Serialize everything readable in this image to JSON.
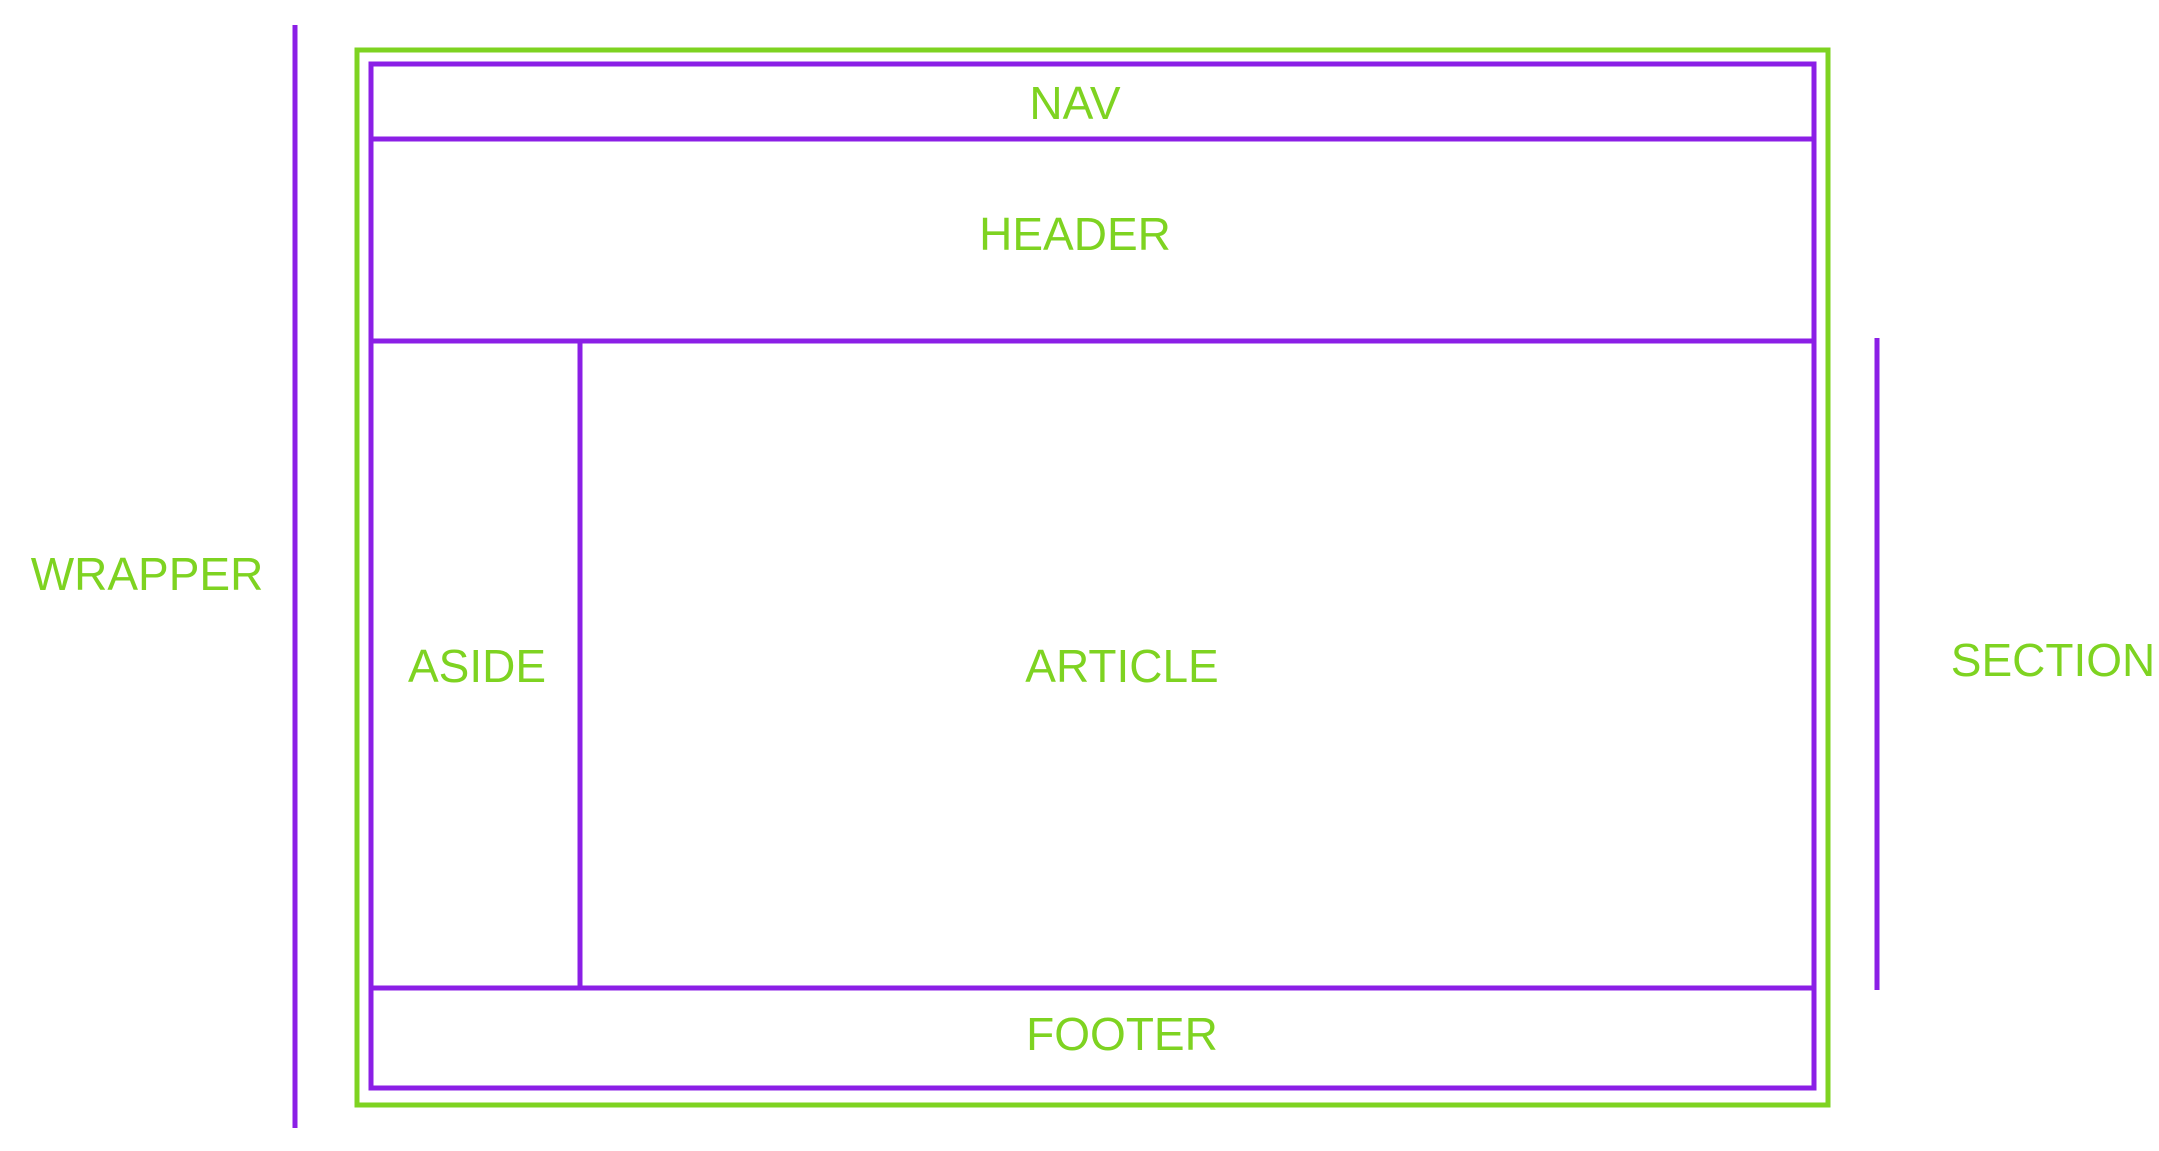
{
  "labels": {
    "nav": "NAV",
    "header": "HEADER",
    "aside": "ASIDE",
    "article": "ARTICLE",
    "footer": "FOOTER",
    "wrapper": "WRAPPER",
    "section": "SECTION"
  },
  "colors": {
    "outer_border": "#7ed321",
    "inner_border": "#8b1fe6",
    "label_text": "#7ed321",
    "background": "#ffffff"
  }
}
